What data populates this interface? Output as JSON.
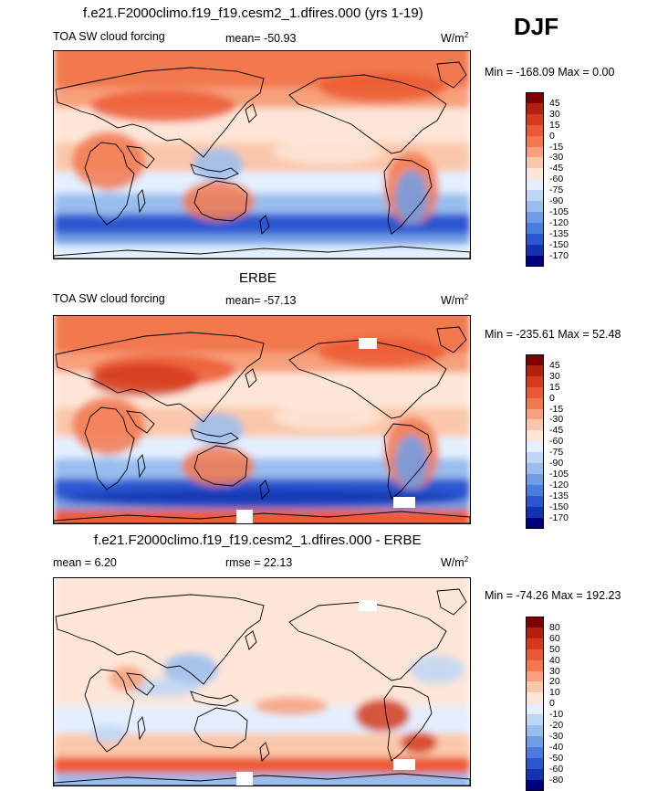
{
  "season": "DJF",
  "panels": [
    {
      "title": "f.e21.F2000climo.f19_f19.cesm2_1.dfires.000 (yrs 1-19)",
      "left_label": "TOA SW cloud forcing",
      "center_label": "mean= -50.93",
      "units": "W/m",
      "units_sup": "2",
      "minmax": "Min = -168.09 Max =   0.00",
      "colorbar": {
        "labels": [
          "45",
          "30",
          "15",
          "0",
          "-15",
          "-30",
          "-45",
          "-60",
          "-75",
          "-90",
          "-105",
          "-120",
          "-135",
          "-150",
          "-170"
        ],
        "colors": [
          "#7f0000",
          "#b2200e",
          "#d4391c",
          "#ec5a32",
          "#f2784d",
          "#f7a07b",
          "#fbc7aa",
          "#fde6d8",
          "#e3efff",
          "#bdd6f6",
          "#98bdee",
          "#6e9de6",
          "#4a7ce0",
          "#2a56d0",
          "#1232b0",
          "#00007f"
        ]
      }
    },
    {
      "title": "ERBE",
      "left_label": "TOA SW cloud forcing",
      "center_label": "mean= -57.13",
      "units": "W/m",
      "units_sup": "2",
      "minmax": "Min = -235.61 Max =  52.48",
      "colorbar": {
        "labels": [
          "45",
          "30",
          "15",
          "0",
          "-15",
          "-30",
          "-45",
          "-60",
          "-75",
          "-90",
          "-105",
          "-120",
          "-135",
          "-150",
          "-170"
        ],
        "colors": [
          "#7f0000",
          "#b2200e",
          "#d4391c",
          "#ec5a32",
          "#f2784d",
          "#f7a07b",
          "#fbc7aa",
          "#fde6d8",
          "#e3efff",
          "#bdd6f6",
          "#98bdee",
          "#6e9de6",
          "#4a7ce0",
          "#2a56d0",
          "#1232b0",
          "#00007f"
        ]
      }
    },
    {
      "title": "f.e21.F2000climo.f19_f19.cesm2_1.dfires.000 - ERBE",
      "left_label": "mean =   6.20",
      "center_label": "rmse =  22.13",
      "units": "W/m",
      "units_sup": "2",
      "minmax": "Min = -74.26 Max = 192.23",
      "colorbar": {
        "labels": [
          "80",
          "60",
          "50",
          "40",
          "30",
          "20",
          "10",
          "0",
          "-10",
          "-20",
          "-30",
          "-40",
          "-50",
          "-60",
          "-80"
        ],
        "colors": [
          "#7f0000",
          "#b2200e",
          "#d4391c",
          "#ec5a32",
          "#f2784d",
          "#f7a07b",
          "#fbc7aa",
          "#fde6d8",
          "#e3efff",
          "#bdd6f6",
          "#98bdee",
          "#6e9de6",
          "#4a7ce0",
          "#2a56d0",
          "#1232b0",
          "#00007f"
        ]
      }
    }
  ]
}
